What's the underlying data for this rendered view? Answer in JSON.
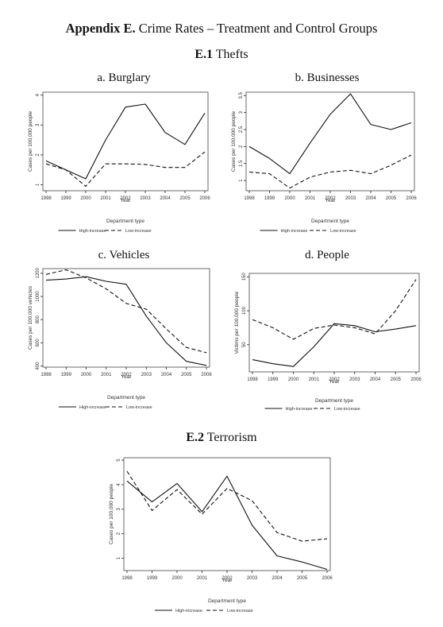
{
  "header": {
    "appendix_label": "Appendix E.",
    "title_rest": "Crime Rates – Treatment and Control Groups"
  },
  "sections": {
    "thefts": {
      "number": "E.1",
      "label": "Thefts"
    },
    "terrorism": {
      "number": "E.2",
      "label": "Terrorism"
    }
  },
  "panel_titles": [
    "a. Burglary",
    "b. Businesses",
    "c. Vehicles",
    "d. People",
    ""
  ],
  "colors": {
    "line": "#111111",
    "axis": "#222222",
    "background": "#ffffff"
  },
  "chart_data": [
    {
      "type": "line",
      "title": "a. Burglary",
      "xlabel": "Year",
      "ylabel": "Cases per 100,000 people",
      "x": [
        "1998",
        "1999",
        "2000",
        "2001",
        "2002",
        "2003",
        "2004",
        "2005",
        "2006"
      ],
      "ylim": [
        0.8,
        4.1
      ],
      "yticks": [
        1,
        2,
        3,
        4
      ],
      "ytick_labels": [
        "1",
        "2",
        "3",
        "4"
      ],
      "legend_title": "Department type",
      "legend_placement": "bottom",
      "series": [
        {
          "name": "High-increase",
          "dash": "solid",
          "values": [
            1.8,
            1.5,
            1.2,
            2.5,
            3.6,
            3.7,
            2.75,
            2.35,
            3.4
          ]
        },
        {
          "name": "Low-increase",
          "dash": "dashed",
          "values": [
            1.7,
            1.5,
            0.95,
            1.7,
            1.7,
            1.68,
            1.58,
            1.58,
            2.1
          ]
        }
      ]
    },
    {
      "type": "line",
      "title": "b. Businesses",
      "xlabel": "Year",
      "ylabel": "Cases per 100,000 people",
      "x": [
        "1998",
        "1999",
        "2000",
        "2001",
        "2002",
        "2003",
        "2004",
        "2005",
        "2006"
      ],
      "ylim": [
        0.7,
        3.6
      ],
      "yticks": [
        1,
        1.5,
        2,
        2.5,
        3,
        3.5
      ],
      "ytick_labels": [
        "1",
        "1.5",
        "2",
        "2.5",
        "3",
        "3.5"
      ],
      "legend_title": "Department type",
      "legend_placement": "bottom",
      "series": [
        {
          "name": "High-increase",
          "dash": "solid",
          "values": [
            2.0,
            1.65,
            1.2,
            2.1,
            2.95,
            3.55,
            2.65,
            2.5,
            2.7
          ]
        },
        {
          "name": "Low-increase",
          "dash": "dashed",
          "values": [
            1.25,
            1.2,
            0.78,
            1.1,
            1.25,
            1.3,
            1.2,
            1.45,
            1.75
          ]
        }
      ]
    },
    {
      "type": "line",
      "title": "c. Vehicles",
      "xlabel": "Year",
      "ylabel": "Cases per 100,000 vehicles",
      "x": [
        "1998",
        "1999",
        "2000",
        "2001",
        "2002",
        "2003",
        "2004",
        "2005",
        "2006"
      ],
      "ylim": [
        390,
        1240
      ],
      "yticks": [
        400,
        600,
        800,
        1000,
        1200
      ],
      "ytick_labels": [
        "400",
        "600",
        "800",
        "1000",
        "1200"
      ],
      "legend_title": "Department type",
      "legend_placement": "bottom",
      "series": [
        {
          "name": "High-increase",
          "dash": "solid",
          "values": [
            1140,
            1150,
            1170,
            1130,
            1105,
            830,
            600,
            440,
            405
          ]
        },
        {
          "name": "Low-increase",
          "dash": "dashed",
          "values": [
            1190,
            1230,
            1160,
            1065,
            940,
            890,
            720,
            560,
            515
          ]
        }
      ]
    },
    {
      "type": "line",
      "title": "d. People",
      "xlabel": "Year",
      "ylabel": "Victims per 100,000 people",
      "x": [
        "1998",
        "1999",
        "2000",
        "2001",
        "2002",
        "2003",
        "2004",
        "2005",
        "2006"
      ],
      "ylim": [
        10,
        155
      ],
      "yticks": [
        50,
        100,
        150
      ],
      "ytick_labels": [
        "50",
        "100",
        "150"
      ],
      "legend_title": "Department type",
      "legend_placement": "bottom",
      "series": [
        {
          "name": "High-increase",
          "dash": "solid",
          "values": [
            28,
            22,
            18,
            47,
            81,
            78,
            69,
            73,
            78
          ]
        },
        {
          "name": "Low-increase",
          "dash": "dashed",
          "values": [
            87,
            75,
            58,
            74,
            79,
            75,
            66,
            100,
            146
          ]
        }
      ]
    },
    {
      "type": "line",
      "title": "E.2 Terrorism",
      "xlabel": "Year",
      "ylabel": "Cases per 100,000 people",
      "x": [
        "1998",
        "1999",
        "2000",
        "2001",
        "2002",
        "2003",
        "2004",
        "2005",
        "2006"
      ],
      "ylim": [
        0.5,
        5.1
      ],
      "yticks": [
        1,
        2,
        3,
        4,
        5
      ],
      "ytick_labels": [
        "1",
        "2",
        "3",
        "4",
        "5"
      ],
      "legend_title": "Department type",
      "legend_placement": "bottom",
      "series": [
        {
          "name": "High-increase",
          "dash": "solid",
          "values": [
            4.15,
            3.3,
            4.05,
            2.9,
            4.35,
            2.35,
            1.1,
            0.85,
            0.55
          ]
        },
        {
          "name": "Low-increase",
          "dash": "dashed",
          "values": [
            4.55,
            2.95,
            3.8,
            2.8,
            3.85,
            3.35,
            2.05,
            1.7,
            1.8
          ]
        }
      ]
    }
  ]
}
